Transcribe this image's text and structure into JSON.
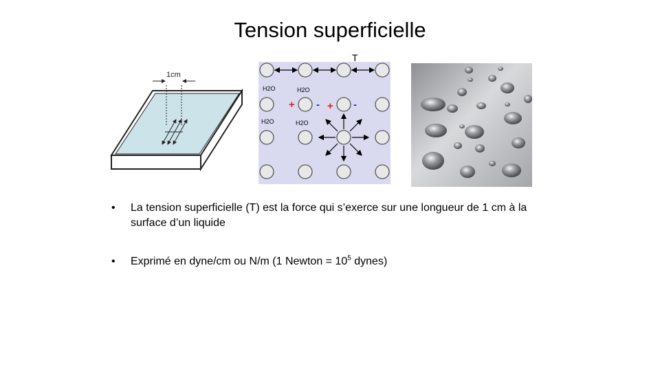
{
  "slide": {
    "title": "Tension superficielle"
  },
  "figures": {
    "tray": {
      "measure_label": "1cm"
    },
    "molecules": {
      "tension_label": "T",
      "h2o_labels": [
        "H2O",
        "H2O",
        "H2O",
        "H2O"
      ],
      "charges": [
        "+",
        "-",
        "+",
        "-"
      ],
      "plus_color": "#e02020",
      "minus_color": "#2030c0",
      "background_color": "#d9daf0"
    },
    "droplets": {
      "icon": "water-droplets-photo"
    }
  },
  "bullets": [
    {
      "marker": "•",
      "text": "La tension superficielle (T) est la force qui s’exerce sur une longueur de 1 cm à la surface d’un liquide"
    },
    {
      "marker": "•",
      "text_before": "Exprimé en dyne/cm ou N/m (1 Newton = 10",
      "superscript": "5",
      "text_after": " dynes)"
    }
  ]
}
